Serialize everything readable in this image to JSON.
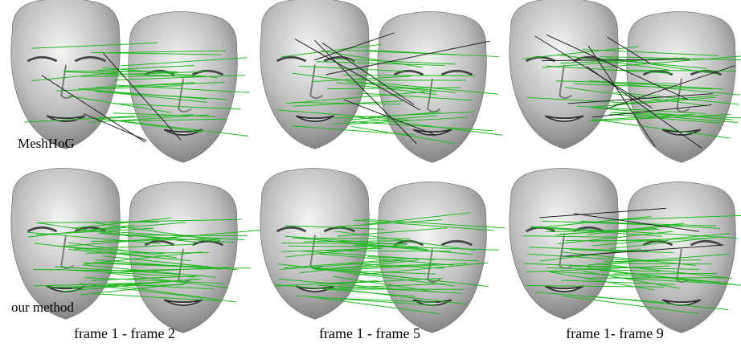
{
  "row_labels": [
    "MeshHoG",
    "our method"
  ],
  "column_labels": [
    "frame 1 - frame 2",
    "frame 1 - frame 5",
    "frame 1- frame 9"
  ]
}
